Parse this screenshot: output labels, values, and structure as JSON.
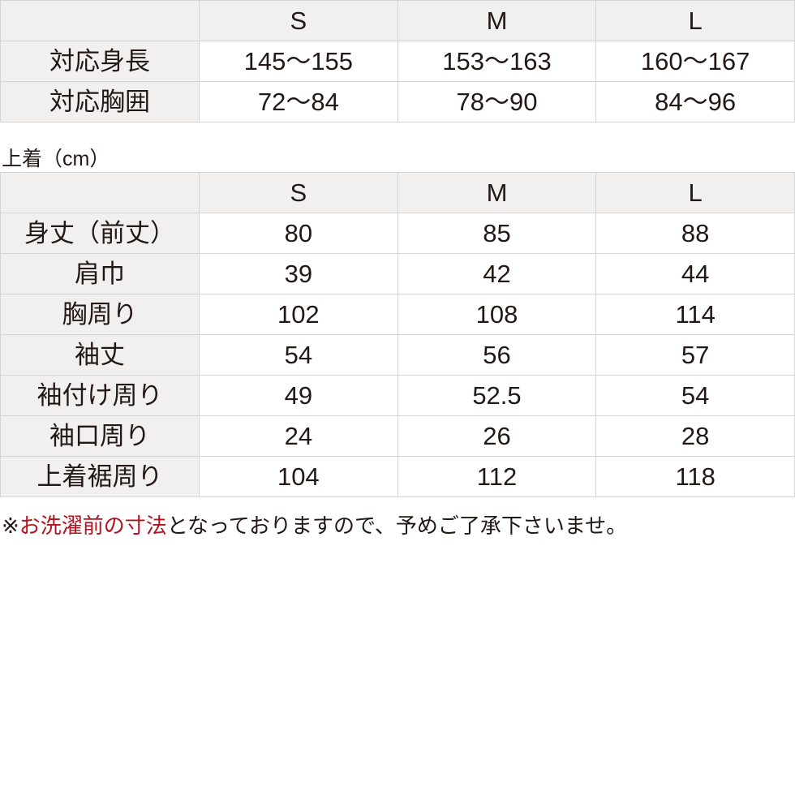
{
  "size_table": {
    "headers": [
      "",
      "S",
      "M",
      "L"
    ],
    "rows": [
      {
        "label": "対応身長",
        "values": [
          "145〜155",
          "153〜163",
          "160〜167"
        ]
      },
      {
        "label": "対応胸囲",
        "values": [
          "72〜84",
          "78〜90",
          "84〜96"
        ]
      }
    ]
  },
  "jacket": {
    "caption": "上着（cm）",
    "headers": [
      "",
      "S",
      "M",
      "L"
    ],
    "rows": [
      {
        "label": "身丈（前丈）",
        "values": [
          "80",
          "85",
          "88"
        ]
      },
      {
        "label": "肩巾",
        "values": [
          "39",
          "42",
          "44"
        ]
      },
      {
        "label": "胸周り",
        "values": [
          "102",
          "108",
          "114"
        ]
      },
      {
        "label": "袖丈",
        "values": [
          "54",
          "56",
          "57"
        ]
      },
      {
        "label": "袖付け周り",
        "values": [
          "49",
          "52.5",
          "54"
        ]
      },
      {
        "label": "袖口周り",
        "values": [
          "24",
          "26",
          "28"
        ]
      },
      {
        "label": "上着裾周り",
        "values": [
          "104",
          "112",
          "118"
        ]
      }
    ]
  },
  "note": {
    "prefix": "※",
    "highlight": "お洗濯前の寸法",
    "rest": "となっておりますので、予めご了承下さいませ。",
    "highlight_color": "#b3121f"
  }
}
